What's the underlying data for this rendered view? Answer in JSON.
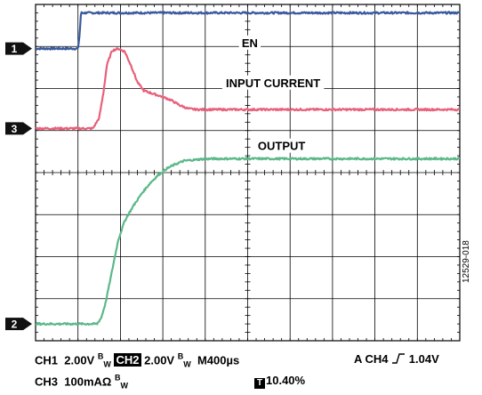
{
  "chart_data": {
    "type": "line",
    "title": "",
    "xlabel": "",
    "ylabel": "",
    "x_divisions": 10,
    "y_divisions": 8,
    "grid": true,
    "time_per_div_us": 400,
    "xlim": [
      0,
      10
    ],
    "ylim": [
      0,
      8
    ],
    "series": [
      {
        "name": "EN",
        "channel": "1",
        "color": "#3a5a9e",
        "marker_level": 6.95,
        "x": [
          0,
          1.0,
          1.04,
          1.07,
          10
        ],
        "y": [
          6.95,
          6.95,
          7.3,
          7.8,
          7.8
        ]
      },
      {
        "name": "INPUT CURRENT",
        "channel": "3",
        "color": "#e8607a",
        "marker_level": 5.05,
        "x": [
          0,
          1.35,
          1.5,
          1.6,
          1.68,
          1.8,
          1.95,
          2.1,
          2.25,
          2.4,
          2.55,
          2.7,
          2.85,
          3.0,
          3.2,
          3.4,
          3.6,
          3.8,
          4.0,
          10
        ],
        "y": [
          5.05,
          5.05,
          5.3,
          5.9,
          6.55,
          6.9,
          6.95,
          6.88,
          6.55,
          6.15,
          5.95,
          5.9,
          5.85,
          5.8,
          5.72,
          5.6,
          5.52,
          5.5,
          5.5,
          5.5
        ]
      },
      {
        "name": "OUTPUT",
        "channel": "2",
        "color": "#5cb88a",
        "marker_level": 0.4,
        "x": [
          0,
          1.45,
          1.55,
          1.65,
          1.75,
          1.85,
          1.95,
          2.1,
          2.3,
          2.5,
          2.7,
          2.9,
          3.1,
          3.3,
          3.5,
          3.7,
          3.9,
          4.2,
          4.5,
          5.0,
          10
        ],
        "y": [
          0.4,
          0.4,
          0.55,
          0.9,
          1.4,
          1.9,
          2.4,
          2.85,
          3.2,
          3.5,
          3.75,
          3.95,
          4.1,
          4.2,
          4.28,
          4.3,
          4.32,
          4.33,
          4.33,
          4.33,
          4.33
        ]
      }
    ],
    "annotations": [
      {
        "text": "EN",
        "series": "EN"
      },
      {
        "text": "INPUT CURRENT",
        "series": "INPUT CURRENT"
      },
      {
        "text": "OUTPUT",
        "series": "OUTPUT"
      }
    ]
  },
  "settings": {
    "line1": {
      "ch1": "CH1",
      "ch1_scale": "2.00V",
      "ch1_bw": "B",
      "ch1_bw_sub": "W",
      "ch2": "CH2",
      "ch2_scale": "2.00V",
      "ch2_bw": "B",
      "ch2_bw_sub": "W",
      "timebase": "M400µs",
      "trigger": "A  CH4",
      "trigger_level": "1.04V"
    },
    "line2": {
      "ch3": "CH3",
      "ch3_scale": "100mAΩ",
      "ch3_bw": "B",
      "ch3_bw_sub": "W",
      "t_marker": "T",
      "t_position": "10.40%"
    }
  },
  "figure_number": "12529-018"
}
